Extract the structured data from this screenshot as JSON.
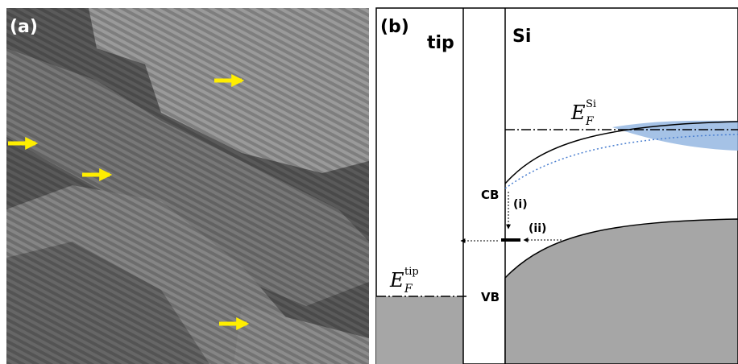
{
  "panel_a": {
    "label": "(a)"
  },
  "panel_b": {
    "label": "(b)",
    "tip_label": "tip",
    "si_label": "Si",
    "fermi_si": {
      "symbol": "E",
      "subscript": "F",
      "superscript": "Si"
    },
    "fermi_tip": {
      "symbol": "E",
      "subscript": "F",
      "superscript": "tip"
    },
    "cb_label": "CB",
    "vb_label": "VB",
    "process_i": "(i)",
    "process_ii": "(ii)"
  }
}
